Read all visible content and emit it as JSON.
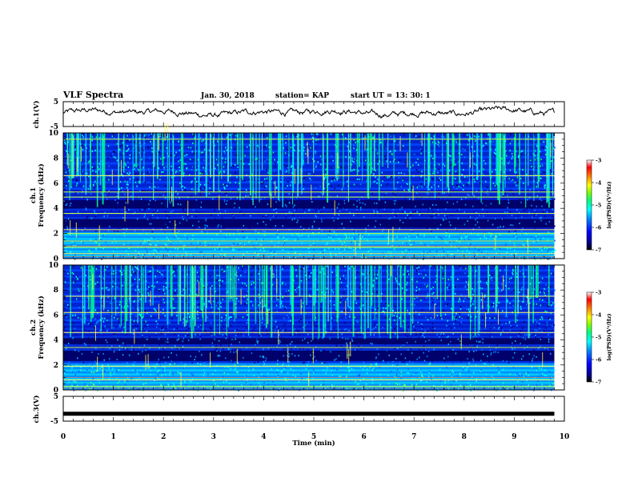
{
  "header": {
    "title": "VLF Spectra",
    "date": "Jan. 30, 2018",
    "station": "station= KAP",
    "start": "start  UT =   13: 30: 1"
  },
  "chart_data": [
    {
      "type": "line",
      "name": "ch1-waveform",
      "ylabel": "ch.1(V)",
      "ylim": [
        -5,
        5
      ],
      "yticks": [
        "5",
        "-5"
      ],
      "xlim": [
        0,
        10
      ],
      "xlabel": "",
      "description_trace": "noisy baseline roughly between -2 and 3 V over 0 to 9.8 min"
    },
    {
      "type": "heatmap",
      "name": "ch1-spectrogram",
      "ylabel": "ch.1\nFrequency (kHz)",
      "ylim": [
        0,
        10
      ],
      "yticks": [
        "0",
        "2",
        "4",
        "6",
        "8",
        "10"
      ],
      "xlim": [
        0,
        9.8
      ],
      "colorbar": {
        "label": "log(PSD)(V²/Hz)",
        "range": [
          -7,
          -3
        ],
        "ticks": [
          "-3",
          "-4",
          "-5",
          "-6",
          "-7"
        ]
      },
      "bands_khz": [
        0.4,
        0.9,
        1.4,
        2.0,
        2.3,
        3.6,
        4.9,
        5.3,
        6.6,
        9.5
      ],
      "dark_bands_khz": [
        [
          2.5,
          3.2
        ],
        [
          4.0,
          4.6
        ]
      ]
    },
    {
      "type": "heatmap",
      "name": "ch2-spectrogram",
      "ylabel": "ch.2\nFrequency (kHz)",
      "ylim": [
        0,
        10
      ],
      "yticks": [
        "0",
        "2",
        "4",
        "6",
        "8",
        "10"
      ],
      "xlim": [
        0,
        9.8
      ],
      "colorbar": {
        "label": "log(PSD)(V²/Hz)",
        "range": [
          -7,
          -3
        ],
        "ticks": [
          "-3",
          "-4",
          "-5",
          "-6",
          "-7"
        ]
      },
      "bands_khz": [
        0.3,
        0.8,
        1.9,
        3.4,
        4.6,
        6.2,
        7.5
      ],
      "dark_bands_khz": [
        [
          2.3,
          3.2
        ],
        [
          3.6,
          4.2
        ]
      ]
    },
    {
      "type": "line",
      "name": "ch3-waveform",
      "ylabel": "ch.3(V)",
      "ylim": [
        -5,
        5
      ],
      "yticks": [
        "5",
        "-5"
      ],
      "xlim": [
        0,
        10
      ],
      "xlabel": "Time  (min)",
      "xticks": [
        "0",
        "1",
        "2",
        "3",
        "4",
        "5",
        "6",
        "7",
        "8",
        "9",
        "10"
      ],
      "constant_value": -2
    }
  ],
  "colors": {
    "scale": [
      "#000000",
      "#00008b",
      "#0000ff",
      "#0080ff",
      "#00ffff",
      "#00ff80",
      "#80ff00",
      "#ffff00",
      "#ff8000",
      "#ff0000",
      "#ffffff"
    ]
  }
}
